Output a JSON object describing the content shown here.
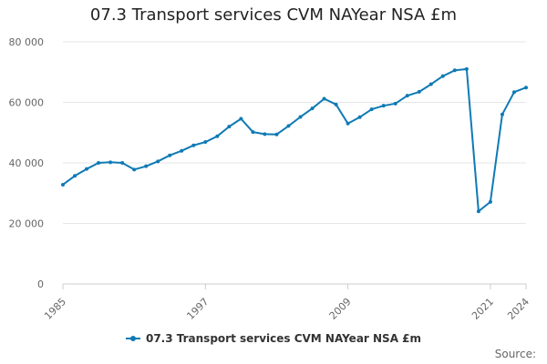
{
  "colors": {
    "series": "#0f7ab5",
    "grid": "#e6e6e6",
    "axis": "#cccccc"
  },
  "source_label": "Source:",
  "chart_data": {
    "type": "line",
    "title": "07.3 Transport services CVM NAYear NSA £m",
    "xlabel": "",
    "ylabel": "",
    "ylim": [
      0,
      80000
    ],
    "xlim": [
      1985,
      2024
    ],
    "y_ticks": [
      {
        "value": 0,
        "label": "0"
      },
      {
        "value": 20000,
        "label": "20 000"
      },
      {
        "value": 40000,
        "label": "40 000"
      },
      {
        "value": 60000,
        "label": "60 000"
      },
      {
        "value": 80000,
        "label": "80 000"
      }
    ],
    "x_ticks": [
      {
        "value": 1985,
        "label": "1985"
      },
      {
        "value": 1997,
        "label": "1997"
      },
      {
        "value": 2009,
        "label": "2009"
      },
      {
        "value": 2021,
        "label": "2021"
      },
      {
        "value": 2024,
        "label": "2024"
      }
    ],
    "legend_position": "bottom",
    "series": [
      {
        "name": "07.3 Transport services CVM NAYear NSA £m",
        "x": [
          1985,
          1986,
          1987,
          1988,
          1989,
          1990,
          1991,
          1992,
          1993,
          1994,
          1995,
          1996,
          1997,
          1998,
          1999,
          2000,
          2001,
          2002,
          2003,
          2004,
          2005,
          2006,
          2007,
          2008,
          2009,
          2010,
          2011,
          2012,
          2013,
          2014,
          2015,
          2016,
          2017,
          2018,
          2019,
          2020,
          2021,
          2022,
          2023,
          2024
        ],
        "values": [
          32800,
          35700,
          38000,
          40000,
          40200,
          40000,
          37800,
          38900,
          40500,
          42500,
          44000,
          45800,
          46900,
          48800,
          52000,
          54600,
          50200,
          49500,
          49400,
          52200,
          55200,
          58000,
          61200,
          59300,
          53000,
          55100,
          57700,
          58900,
          59600,
          62200,
          63500,
          66000,
          68700,
          70600,
          71000,
          24000,
          27100,
          56000,
          63400,
          64900
        ]
      }
    ]
  }
}
